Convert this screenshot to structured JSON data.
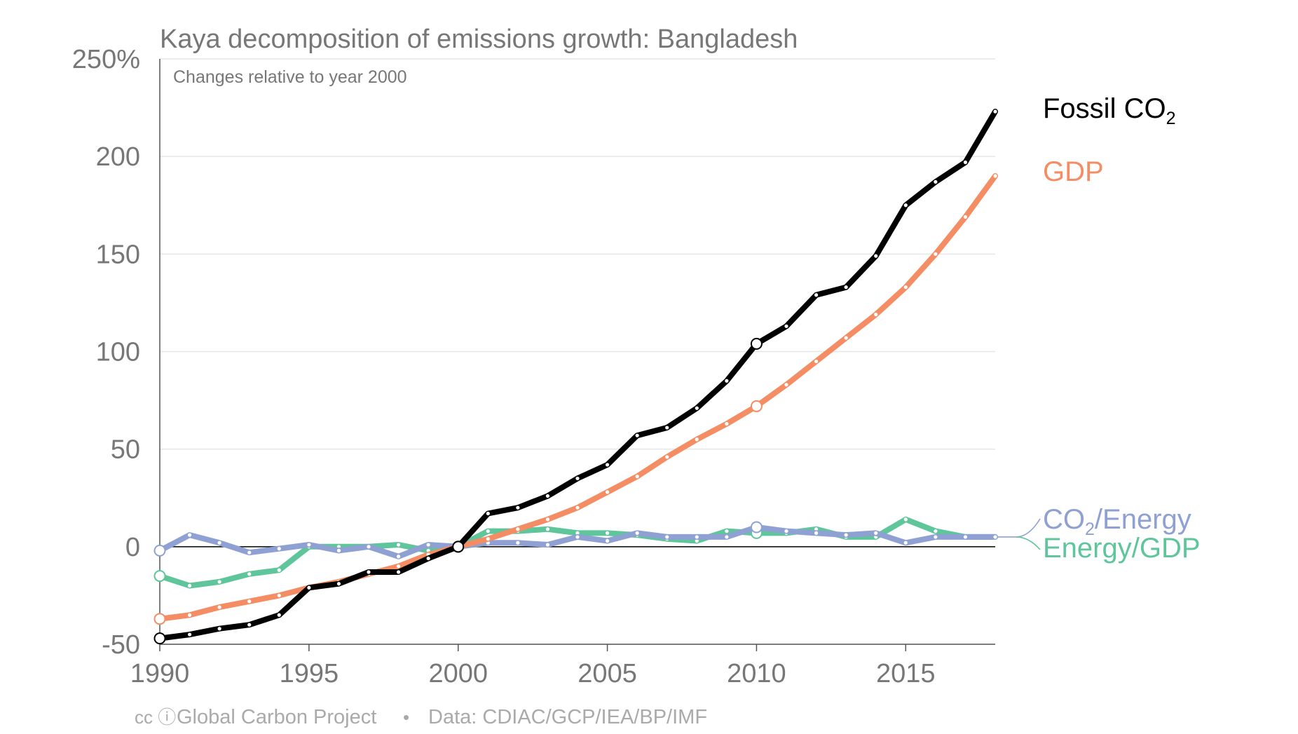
{
  "chart_data": {
    "type": "line",
    "title": "Kaya decomposition of emissions growth: Bangladesh",
    "subtitle": "Changes relative to year 2000",
    "xlabel": "",
    "ylabel": "",
    "xlim": [
      1990,
      2018
    ],
    "ylim": [
      -50,
      250
    ],
    "x_ticks": [
      1990,
      1995,
      2000,
      2005,
      2010,
      2015
    ],
    "y_ticks": [
      {
        "value": 250,
        "label": "250%"
      },
      {
        "value": 200,
        "label": "200"
      },
      {
        "value": 150,
        "label": "150"
      },
      {
        "value": 100,
        "label": "100"
      },
      {
        "value": 50,
        "label": "50"
      },
      {
        "value": 0,
        "label": "0"
      },
      {
        "value": -50,
        "label": "-50"
      }
    ],
    "grid": true,
    "x": [
      1990,
      1991,
      1992,
      1993,
      1994,
      1995,
      1996,
      1997,
      1998,
      1999,
      2000,
      2001,
      2002,
      2003,
      2004,
      2005,
      2006,
      2007,
      2008,
      2009,
      2010,
      2011,
      2012,
      2013,
      2014,
      2015,
      2016,
      2017,
      2018
    ],
    "series": [
      {
        "key": "energy_gdp",
        "label_main": "Energy/GDP",
        "label_sub": "",
        "label_suffix": "",
        "color": "#5fc59b",
        "values": [
          -15,
          -20,
          -18,
          -14,
          -12,
          0,
          0,
          0,
          1,
          -2,
          0,
          8,
          8,
          9,
          7,
          7,
          6,
          4,
          3,
          8,
          7,
          7,
          9,
          5,
          5,
          14,
          8,
          5,
          5
        ]
      },
      {
        "key": "co2_energy",
        "label_main": "CO",
        "label_sub": "2",
        "label_suffix": "/Energy",
        "color": "#8fa0d2",
        "values": [
          -2,
          6,
          2,
          -3,
          -1,
          1,
          -2,
          0,
          -5,
          1,
          0,
          2,
          2,
          1,
          5,
          3,
          7,
          5,
          5,
          5,
          10,
          8,
          7,
          6,
          7,
          2,
          5,
          5,
          5
        ]
      },
      {
        "key": "gdp",
        "label_main": "GDP",
        "label_sub": "",
        "label_suffix": "",
        "color": "#f58d64",
        "values": [
          -37,
          -35,
          -31,
          -28,
          -25,
          -21,
          -18,
          -14,
          -10,
          -4,
          0,
          4,
          9,
          14,
          20,
          28,
          36,
          46,
          55,
          63,
          72,
          83,
          95,
          107,
          119,
          133,
          150,
          169,
          190
        ]
      },
      {
        "key": "fossil_co2",
        "label_main": "Fossil CO",
        "label_sub": "2",
        "label_suffix": "",
        "color": "#000000",
        "values": [
          -47,
          -45,
          -42,
          -40,
          -35,
          -21,
          -19,
          -13,
          -13,
          -6,
          0,
          17,
          20,
          26,
          35,
          42,
          57,
          61,
          71,
          85,
          104,
          113,
          129,
          133,
          149,
          175,
          187,
          197,
          223
        ]
      }
    ],
    "highlight_years": [
      1990,
      2000,
      2010
    ],
    "footer": {
      "cc_icons": "cc ⓘ",
      "credit": "Global Carbon Project",
      "separator": "•",
      "source": "Data: CDIAC/GCP/IEA/BP/IMF"
    }
  }
}
